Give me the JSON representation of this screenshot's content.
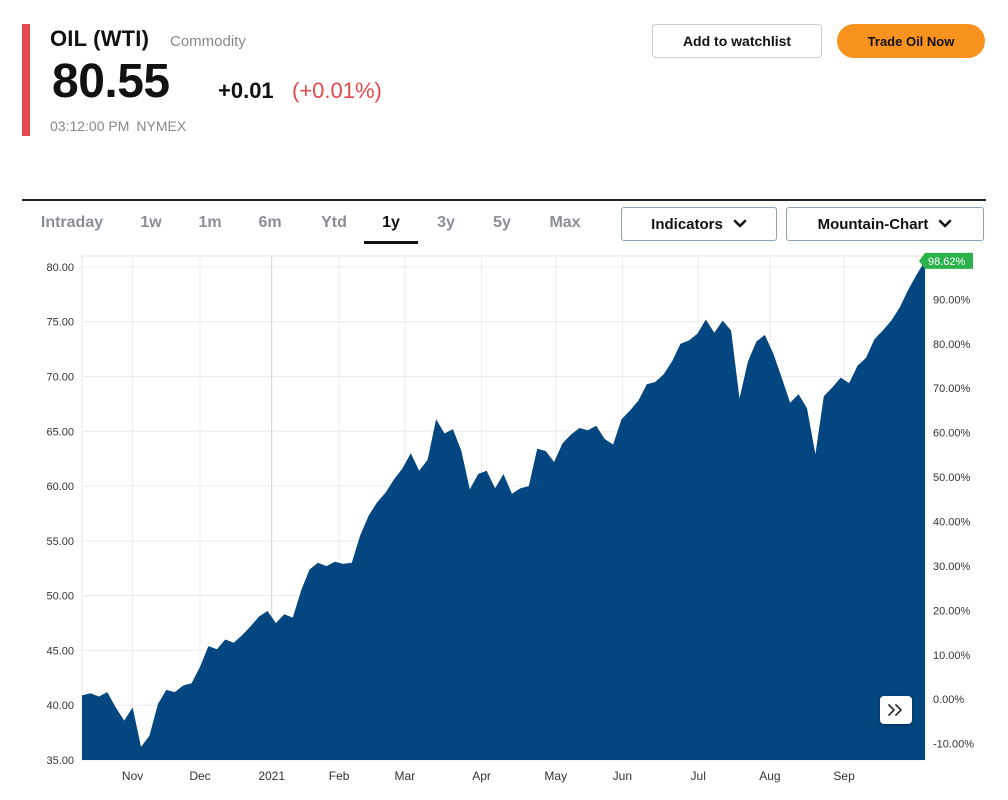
{
  "quote": {
    "name": "OIL (WTI)",
    "type": "Commodity",
    "price": "80.55",
    "change": "+0.01",
    "change_pct": "(+0.01%)",
    "time": "03:12:00 PM",
    "exchange": "NYMEX"
  },
  "actions": {
    "watchlist_label": "Add to watchlist",
    "trade_label": "Trade Oil Now"
  },
  "tabs": [
    {
      "label": "Intraday"
    },
    {
      "label": "1w"
    },
    {
      "label": "1m"
    },
    {
      "label": "6m"
    },
    {
      "label": "Ytd"
    },
    {
      "label": "1y",
      "active": true
    },
    {
      "label": "3y"
    },
    {
      "label": "5y"
    },
    {
      "label": "Max"
    }
  ],
  "dropdowns": {
    "indicators_label": "Indicators",
    "chart_type_label": "Mountain-Chart"
  },
  "colors": {
    "accent": "#e5484d",
    "fill": "#04467f",
    "trade": "#f7931e",
    "badge": "#2bb24c"
  },
  "icons": [
    "chevron-down-icon",
    "double-chevron-right-icon"
  ],
  "chart_data": {
    "type": "area",
    "x_labels": [
      "Nov",
      "Dec",
      "2021",
      "Feb",
      "Mar",
      "Apr",
      "May",
      "Jun",
      "Jul",
      "Aug",
      "Sep"
    ],
    "y_ticks": [
      "80.00",
      "75.00",
      "70.00",
      "65.00",
      "60.00",
      "55.00",
      "50.00",
      "45.00",
      "40.00",
      "35.00"
    ],
    "y2_ticks": [
      "90.00%",
      "80.00%",
      "70.00%",
      "60.00%",
      "50.00%",
      "40.00%",
      "30.00%",
      "20.00%",
      "10.00%",
      "0.00%",
      "-10.00%"
    ],
    "ylim": [
      35,
      81
    ],
    "badge": "98.62%",
    "series": [
      {
        "x": [
          0,
          0.01,
          0.02,
          0.03,
          0.04,
          0.05,
          0.06,
          0.07,
          0.08,
          0.09,
          0.1,
          0.11,
          0.12,
          0.13,
          0.14,
          0.15,
          0.16,
          0.17,
          0.18,
          0.19,
          0.2,
          0.21,
          0.22,
          0.23,
          0.24,
          0.25,
          0.26,
          0.27,
          0.28,
          0.29,
          0.3,
          0.31,
          0.32,
          0.33,
          0.34,
          0.35,
          0.36,
          0.37,
          0.38,
          0.39,
          0.4,
          0.41,
          0.42,
          0.43,
          0.44,
          0.45,
          0.46,
          0.47,
          0.48,
          0.49,
          0.5,
          0.51,
          0.52,
          0.53,
          0.54,
          0.55,
          0.56,
          0.57,
          0.58,
          0.59,
          0.6,
          0.61,
          0.62,
          0.63,
          0.64,
          0.65,
          0.66,
          0.67,
          0.68,
          0.69,
          0.7,
          0.71,
          0.72,
          0.73,
          0.74,
          0.75,
          0.76,
          0.77,
          0.78,
          0.79,
          0.8,
          0.81,
          0.82,
          0.83,
          0.84,
          0.85,
          0.86,
          0.87,
          0.88,
          0.89,
          0.9,
          0.91,
          0.92,
          0.93,
          0.94,
          0.95,
          0.96,
          0.97,
          0.98,
          0.99,
          1
        ],
        "y": [
          40.9,
          41.1,
          40.8,
          41.2,
          39.8,
          38.6,
          39.8,
          36.2,
          37.2,
          40.1,
          41.4,
          41.2,
          41.8,
          42.0,
          43.5,
          45.4,
          45.1,
          46.0,
          45.7,
          46.4,
          47.2,
          48.1,
          48.6,
          47.5,
          48.3,
          48.0,
          50.5,
          52.4,
          53.0,
          52.7,
          53.1,
          52.9,
          53.0,
          55.5,
          57.3,
          58.5,
          59.4,
          60.6,
          61.6,
          63.0,
          61.4,
          62.4,
          66.1,
          64.8,
          65.2,
          63.2,
          59.7,
          61.1,
          61.4,
          59.8,
          61.1,
          59.3,
          59.8,
          60.0,
          63.4,
          63.2,
          62.2,
          63.9,
          64.7,
          65.3,
          65.1,
          65.5,
          64.3,
          63.8,
          66.1,
          66.9,
          67.8,
          69.3,
          69.5,
          70.2,
          71.4,
          73.0,
          73.3,
          73.9,
          75.2,
          74.0,
          75.1,
          74.2,
          68.0,
          71.4,
          73.2,
          73.8,
          72.1,
          69.9,
          67.6,
          68.4,
          67.1,
          62.9,
          68.2,
          69.0,
          69.9,
          69.4,
          71.0,
          71.7,
          73.4,
          74.2,
          75.1,
          76.3,
          77.9,
          79.3,
          80.55
        ]
      }
    ]
  }
}
